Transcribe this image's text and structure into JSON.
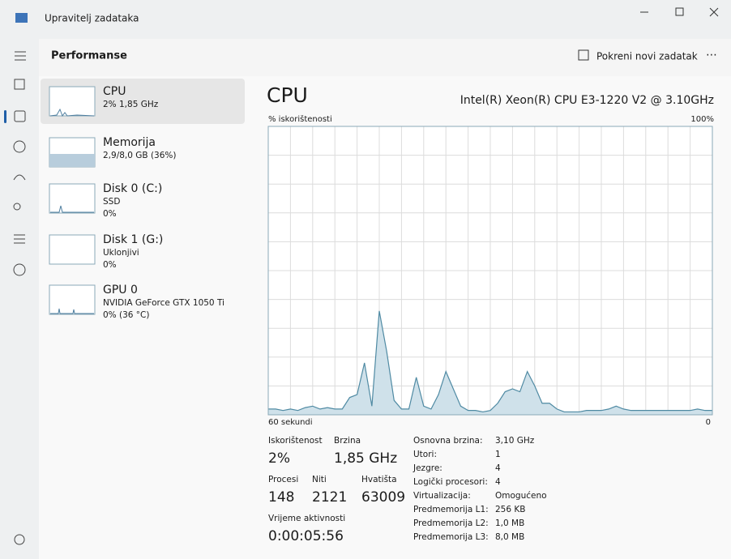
{
  "window": {
    "title": "Upravitelj zadataka"
  },
  "header": {
    "title": "Performanse",
    "new_task": "Pokreni novi zadatak"
  },
  "sidebar": [
    {
      "name": "CPU",
      "lines": [
        "2% 1,85 GHz"
      ]
    },
    {
      "name": "Memorija",
      "lines": [
        "2,9/8,0 GB (36%)"
      ]
    },
    {
      "name": "Disk 0 (C:)",
      "lines": [
        "SSD",
        "0%"
      ]
    },
    {
      "name": "Disk 1 (G:)",
      "lines": [
        "Uklonjivi",
        "0%"
      ]
    },
    {
      "name": "GPU 0",
      "lines": [
        "NVIDIA GeForce GTX 1050 Ti",
        "0% (36 °C)"
      ]
    }
  ],
  "panel": {
    "title": "CPU",
    "model": "Intel(R) Xeon(R) CPU E3-1220 V2 @ 3.10GHz"
  },
  "chart_data": {
    "type": "area",
    "y_label": "% iskorištenosti",
    "ylim": [
      0,
      100
    ],
    "yticks": [
      {
        "value": 100,
        "label": "100%"
      }
    ],
    "xlim": [
      60,
      0
    ],
    "xticks": [
      {
        "value": 60,
        "label": "60 sekundi"
      },
      0
    ],
    "color": "#4f8aa3",
    "x": [
      60,
      59,
      58,
      57,
      56,
      55,
      54,
      53,
      52,
      51,
      50,
      49,
      48,
      47,
      46,
      45,
      44,
      43,
      42,
      41,
      40,
      39,
      38,
      37,
      36,
      35,
      34,
      33,
      32,
      31,
      30,
      29,
      28,
      27,
      26,
      25,
      24,
      23,
      22,
      21,
      20,
      19,
      18,
      17,
      16,
      15,
      14,
      13,
      12,
      11,
      10,
      9,
      8,
      7,
      6,
      5,
      4,
      3,
      2,
      1,
      0
    ],
    "values": [
      2,
      2,
      1.5,
      2,
      1.5,
      2.5,
      3,
      2,
      2.5,
      2,
      2,
      6,
      7,
      18,
      3,
      36,
      22,
      5,
      2,
      2,
      13,
      3,
      2,
      7,
      15,
      9,
      3,
      1.5,
      1.5,
      1,
      1.5,
      4,
      8,
      9,
      8,
      15,
      10,
      4,
      4,
      2,
      1,
      1,
      1,
      1.5,
      1.5,
      1.5,
      2,
      3,
      2,
      1.5,
      1.5,
      1.5,
      1.5,
      1.5,
      1.5,
      1.5,
      1.5,
      1.5,
      2,
      1.5,
      1.5
    ]
  },
  "stats": [
    {
      "label": "Iskorištenost",
      "value": "2%"
    },
    {
      "label": "Brzina",
      "value": "1,85 GHz"
    },
    {
      "label": "Procesi",
      "value": "148"
    },
    {
      "label": "Niti",
      "value": "2121"
    },
    {
      "label": "Hvatišta",
      "value": "63009"
    },
    {
      "label": "Vrijeme aktivnosti",
      "value": "0:00:05:56"
    }
  ],
  "specs": [
    [
      "Osnovna brzina:",
      "3,10 GHz"
    ],
    [
      "Utori:",
      "1"
    ],
    [
      "Jezgre:",
      "4"
    ],
    [
      "Logički procesori:",
      "4"
    ],
    [
      "Virtualizacija:",
      "Omogućeno"
    ],
    [
      "Predmemorija L1:",
      "256 KB"
    ],
    [
      "Predmemorija L2:",
      "1,0 MB"
    ],
    [
      "Predmemorija L3:",
      "8,0 MB"
    ]
  ]
}
